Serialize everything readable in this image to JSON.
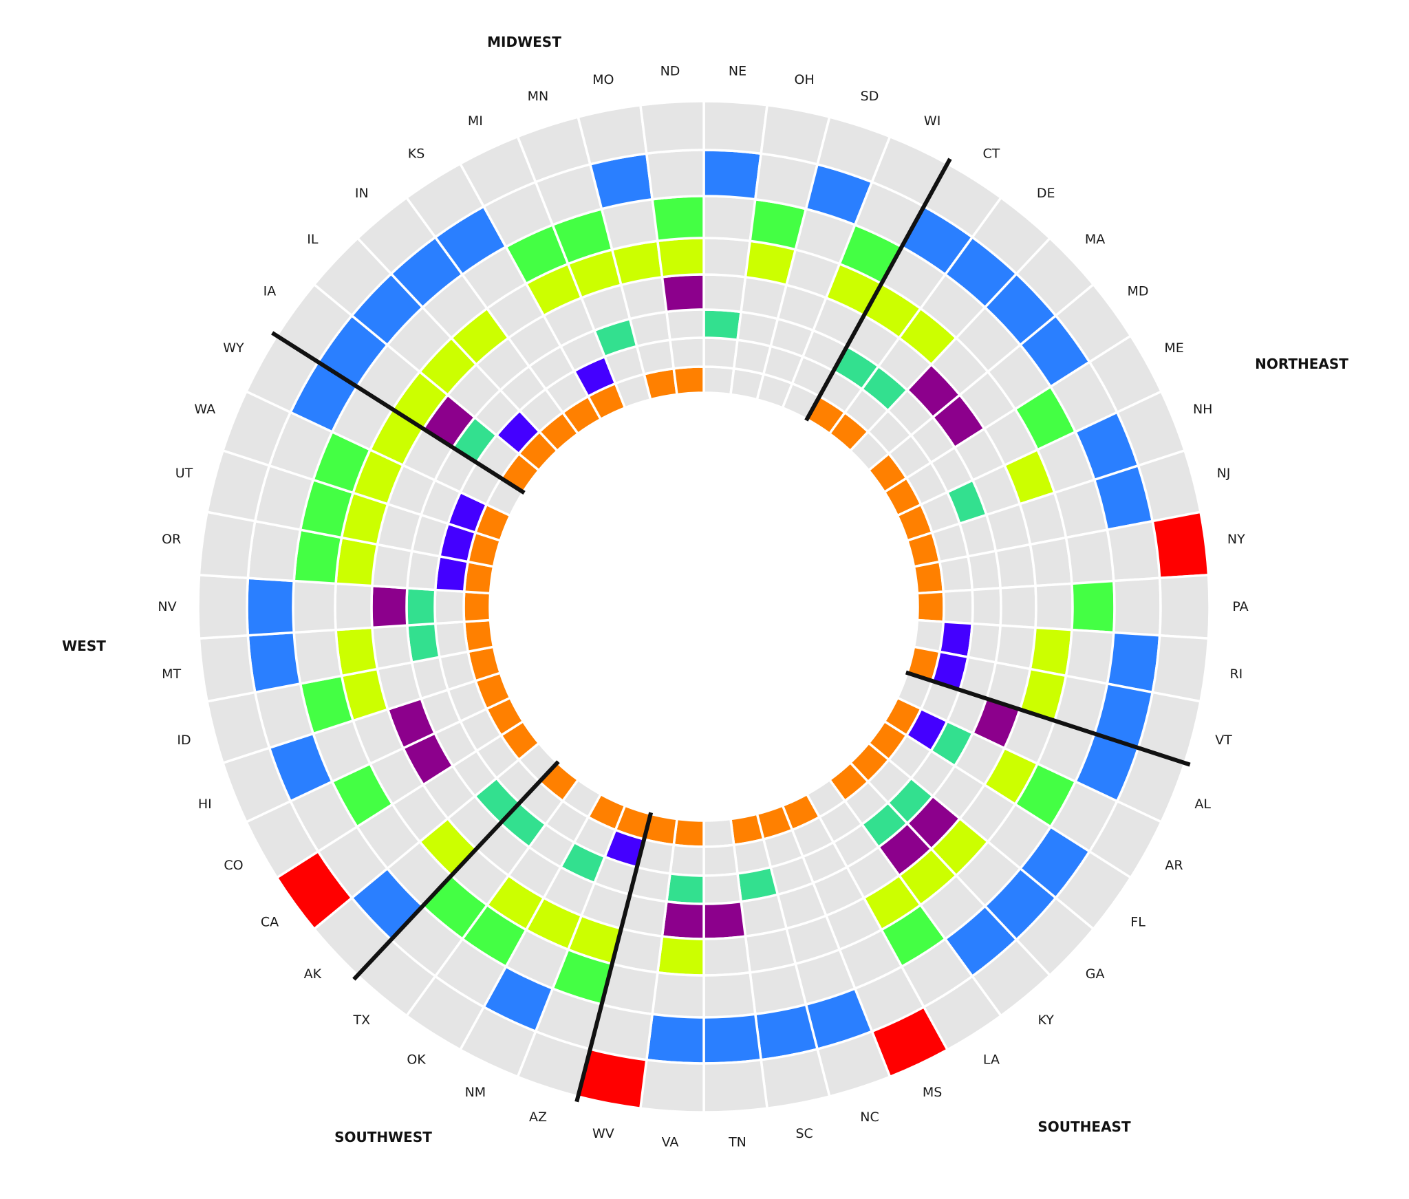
{
  "chart_data": {
    "type": "heatmap",
    "layout": "radial",
    "title": "",
    "ring_order": "inner-to-outer",
    "ring_colors": [
      "#ff8000",
      "#4400ff",
      "#33e08f",
      "#8c008c",
      "#ccff00",
      "#44ff44",
      "#2a7fff",
      "#ff0000"
    ],
    "empty_color": "#e5e5e5",
    "boundary_color": "#111111",
    "regions": [
      {
        "label": "MIDWEST"
      },
      {
        "label": "NORTHEAST"
      },
      {
        "label": "SOUTHEAST"
      },
      {
        "label": "SOUTHWEST"
      },
      {
        "label": "WEST"
      }
    ],
    "states": [
      {
        "name": "NE",
        "region": "MIDWEST",
        "rings": [
          0,
          0,
          1,
          0,
          0,
          0,
          1,
          0
        ]
      },
      {
        "name": "OH",
        "region": "MIDWEST",
        "rings": [
          0,
          0,
          0,
          0,
          1,
          1,
          0,
          0
        ]
      },
      {
        "name": "SD",
        "region": "MIDWEST",
        "rings": [
          0,
          0,
          0,
          0,
          0,
          0,
          1,
          0
        ]
      },
      {
        "name": "WI",
        "region": "MIDWEST",
        "rings": [
          0,
          0,
          0,
          0,
          1,
          1,
          0,
          0
        ]
      },
      {
        "name": "CT",
        "region": "NORTHEAST",
        "rings": [
          1,
          0,
          1,
          0,
          1,
          0,
          1,
          0
        ]
      },
      {
        "name": "DE",
        "region": "NORTHEAST",
        "rings": [
          1,
          0,
          1,
          0,
          1,
          0,
          1,
          0
        ]
      },
      {
        "name": "MA",
        "region": "NORTHEAST",
        "rings": [
          0,
          0,
          0,
          1,
          0,
          0,
          1,
          0
        ]
      },
      {
        "name": "MD",
        "region": "NORTHEAST",
        "rings": [
          1,
          0,
          0,
          1,
          0,
          0,
          1,
          0
        ]
      },
      {
        "name": "ME",
        "region": "NORTHEAST",
        "rings": [
          1,
          0,
          0,
          0,
          0,
          1,
          0,
          0
        ]
      },
      {
        "name": "NH",
        "region": "NORTHEAST",
        "rings": [
          1,
          0,
          1,
          0,
          1,
          0,
          1,
          0
        ]
      },
      {
        "name": "NJ",
        "region": "NORTHEAST",
        "rings": [
          1,
          0,
          0,
          0,
          0,
          0,
          1,
          0
        ]
      },
      {
        "name": "NY",
        "region": "NORTHEAST",
        "rings": [
          1,
          0,
          0,
          0,
          0,
          0,
          0,
          1
        ]
      },
      {
        "name": "PA",
        "region": "NORTHEAST",
        "rings": [
          1,
          0,
          0,
          0,
          0,
          1,
          0,
          0
        ]
      },
      {
        "name": "RI",
        "region": "NORTHEAST",
        "rings": [
          0,
          1,
          0,
          0,
          1,
          0,
          1,
          0
        ]
      },
      {
        "name": "VT",
        "region": "NORTHEAST",
        "rings": [
          1,
          1,
          0,
          0,
          1,
          0,
          1,
          0
        ]
      },
      {
        "name": "AL",
        "region": "SOUTHEAST",
        "rings": [
          0,
          0,
          0,
          1,
          0,
          0,
          1,
          0
        ]
      },
      {
        "name": "AR",
        "region": "SOUTHEAST",
        "rings": [
          1,
          1,
          1,
          0,
          1,
          1,
          0,
          0
        ]
      },
      {
        "name": "FL",
        "region": "SOUTHEAST",
        "rings": [
          1,
          0,
          0,
          0,
          0,
          0,
          1,
          0
        ]
      },
      {
        "name": "GA",
        "region": "SOUTHEAST",
        "rings": [
          1,
          0,
          1,
          1,
          1,
          0,
          1,
          0
        ]
      },
      {
        "name": "KY",
        "region": "SOUTHEAST",
        "rings": [
          1,
          0,
          1,
          1,
          1,
          0,
          1,
          0
        ]
      },
      {
        "name": "LA",
        "region": "SOUTHEAST",
        "rings": [
          0,
          0,
          0,
          0,
          1,
          1,
          0,
          0
        ]
      },
      {
        "name": "MS",
        "region": "SOUTHEAST",
        "rings": [
          1,
          0,
          0,
          0,
          0,
          0,
          0,
          1
        ]
      },
      {
        "name": "NC",
        "region": "SOUTHEAST",
        "rings": [
          1,
          0,
          0,
          0,
          0,
          0,
          1,
          0
        ]
      },
      {
        "name": "SC",
        "region": "SOUTHEAST",
        "rings": [
          1,
          0,
          1,
          0,
          0,
          0,
          1,
          0
        ]
      },
      {
        "name": "TN",
        "region": "SOUTHEAST",
        "rings": [
          0,
          0,
          0,
          1,
          0,
          0,
          1,
          0
        ]
      },
      {
        "name": "VA",
        "region": "SOUTHEAST",
        "rings": [
          1,
          0,
          1,
          1,
          1,
          0,
          1,
          0
        ]
      },
      {
        "name": "WV",
        "region": "SOUTHEAST",
        "rings": [
          1,
          0,
          0,
          0,
          0,
          0,
          0,
          1
        ]
      },
      {
        "name": "AZ",
        "region": "SOUTHWEST",
        "rings": [
          1,
          1,
          0,
          0,
          1,
          1,
          0,
          0
        ]
      },
      {
        "name": "NM",
        "region": "SOUTHWEST",
        "rings": [
          1,
          0,
          1,
          0,
          1,
          0,
          1,
          0
        ]
      },
      {
        "name": "OK",
        "region": "SOUTHWEST",
        "rings": [
          0,
          0,
          0,
          0,
          1,
          1,
          0,
          0
        ]
      },
      {
        "name": "TX",
        "region": "SOUTHWEST",
        "rings": [
          1,
          0,
          1,
          0,
          0,
          1,
          0,
          0
        ]
      },
      {
        "name": "AK",
        "region": "WEST",
        "rings": [
          0,
          0,
          1,
          0,
          1,
          0,
          1,
          0
        ]
      },
      {
        "name": "CA",
        "region": "WEST",
        "rings": [
          1,
          0,
          0,
          0,
          0,
          0,
          0,
          1
        ]
      },
      {
        "name": "CO",
        "region": "WEST",
        "rings": [
          1,
          0,
          0,
          1,
          0,
          1,
          0,
          0
        ]
      },
      {
        "name": "HI",
        "region": "WEST",
        "rings": [
          1,
          0,
          0,
          1,
          0,
          0,
          1,
          0
        ]
      },
      {
        "name": "ID",
        "region": "WEST",
        "rings": [
          1,
          0,
          0,
          0,
          1,
          1,
          0,
          0
        ]
      },
      {
        "name": "MT",
        "region": "WEST",
        "rings": [
          1,
          0,
          1,
          0,
          1,
          0,
          1,
          0
        ]
      },
      {
        "name": "NV",
        "region": "WEST",
        "rings": [
          1,
          0,
          1,
          1,
          0,
          0,
          1,
          0
        ]
      },
      {
        "name": "OR",
        "region": "WEST",
        "rings": [
          1,
          1,
          0,
          0,
          1,
          1,
          0,
          0
        ]
      },
      {
        "name": "UT",
        "region": "WEST",
        "rings": [
          1,
          1,
          0,
          0,
          1,
          1,
          0,
          0
        ]
      },
      {
        "name": "WA",
        "region": "WEST",
        "rings": [
          1,
          1,
          0,
          0,
          1,
          1,
          0,
          0
        ]
      },
      {
        "name": "WY",
        "region": "WEST",
        "rings": [
          0,
          0,
          0,
          0,
          1,
          0,
          1,
          0
        ]
      },
      {
        "name": "IA",
        "region": "MIDWEST",
        "rings": [
          1,
          0,
          1,
          1,
          1,
          0,
          1,
          0
        ]
      },
      {
        "name": "IL",
        "region": "MIDWEST",
        "rings": [
          1,
          1,
          0,
          0,
          1,
          0,
          1,
          0
        ]
      },
      {
        "name": "IN",
        "region": "MIDWEST",
        "rings": [
          1,
          0,
          0,
          0,
          1,
          0,
          1,
          0
        ]
      },
      {
        "name": "KS",
        "region": "MIDWEST",
        "rings": [
          1,
          0,
          0,
          0,
          0,
          0,
          1,
          0
        ]
      },
      {
        "name": "MI",
        "region": "MIDWEST",
        "rings": [
          1,
          1,
          0,
          0,
          1,
          1,
          0,
          0
        ]
      },
      {
        "name": "MN",
        "region": "MIDWEST",
        "rings": [
          0,
          0,
          1,
          0,
          1,
          1,
          0,
          0
        ]
      },
      {
        "name": "MO",
        "region": "MIDWEST",
        "rings": [
          1,
          0,
          0,
          0,
          1,
          0,
          1,
          0
        ]
      },
      {
        "name": "ND",
        "region": "MIDWEST",
        "rings": [
          1,
          0,
          0,
          1,
          1,
          1,
          0,
          0
        ]
      }
    ]
  }
}
